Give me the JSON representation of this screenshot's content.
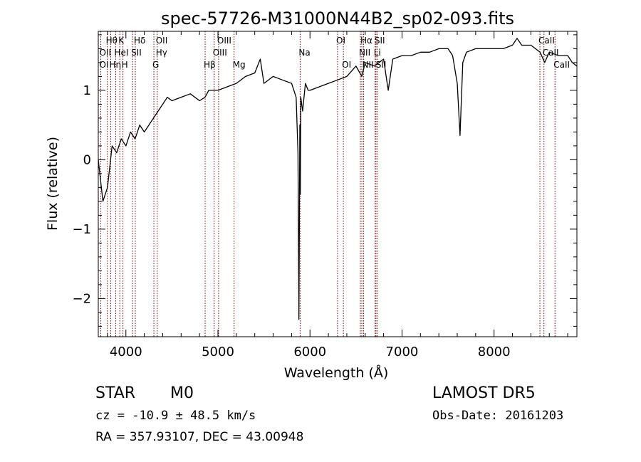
{
  "chart_data": {
    "type": "line",
    "title": "spec-57726-M31000N44B2_sp02-093.fits",
    "xlabel": "Wavelength (Å)",
    "ylabel": "Flux (relative)",
    "xlim": [
      3700,
      8900
    ],
    "ylim": [
      -2.55,
      1.85
    ],
    "xticks": [
      4000,
      5000,
      6000,
      7000,
      8000
    ],
    "yticks": [
      -2,
      -1,
      0,
      1
    ],
    "line_color": "#000000",
    "marker_color": "#8b0000",
    "series": [
      {
        "x": [
          3700,
          3750,
          3800,
          3850,
          3900,
          3950,
          4000,
          4050,
          4100,
          4150,
          4200,
          4250,
          4300,
          4350,
          4400,
          4450,
          4500,
          4600,
          4700,
          4800,
          4860,
          4900,
          5000,
          5100,
          5200,
          5300,
          5400,
          5460,
          5500,
          5600,
          5700,
          5800,
          5850,
          5870,
          5880,
          5890,
          5895,
          5900,
          5920,
          5950,
          5980,
          6000,
          6100,
          6200,
          6300,
          6400,
          6500,
          6563,
          6600,
          6700,
          6800,
          6850,
          6900,
          7000,
          7100,
          7200,
          7300,
          7400,
          7500,
          7550,
          7600,
          7630,
          7660,
          7700,
          7800,
          7900,
          8000,
          8100,
          8200,
          8250,
          8300,
          8400,
          8500,
          8550,
          8600,
          8700,
          8800,
          8850,
          8900
        ],
        "y": [
          0.0,
          -0.6,
          -0.4,
          0.2,
          0.1,
          0.3,
          0.2,
          0.4,
          0.3,
          0.5,
          0.4,
          0.5,
          0.6,
          0.7,
          0.8,
          0.9,
          0.85,
          0.9,
          0.95,
          0.85,
          0.9,
          1.0,
          1.0,
          1.05,
          1.1,
          1.2,
          1.25,
          1.45,
          1.1,
          1.2,
          1.15,
          1.1,
          0.9,
          0.1,
          -2.3,
          0.5,
          -0.5,
          0.9,
          0.7,
          1.1,
          1.0,
          1.0,
          1.05,
          1.1,
          1.15,
          1.2,
          1.35,
          1.2,
          1.4,
          1.35,
          1.45,
          1.0,
          1.45,
          1.5,
          1.5,
          1.55,
          1.55,
          1.6,
          1.6,
          1.5,
          1.1,
          0.35,
          1.4,
          1.55,
          1.6,
          1.6,
          1.6,
          1.6,
          1.65,
          1.75,
          1.65,
          1.65,
          1.55,
          1.4,
          1.55,
          1.5,
          1.5,
          1.4,
          1.35
        ]
      }
    ],
    "lines": [
      {
        "name": "Hθ",
        "wl": 3798,
        "row": 1
      },
      {
        "name": "K",
        "wl": 3934,
        "row": 1
      },
      {
        "name": "Hδ",
        "wl": 4102,
        "row": 1
      },
      {
        "name": "OII",
        "wl": 4340,
        "row": 1
      },
      {
        "name": "OIII",
        "wl": 5007,
        "row": 1
      },
      {
        "name": "Na",
        "wl": 5893,
        "row": 2
      },
      {
        "name": "OI",
        "wl": 6300,
        "row": 1
      },
      {
        "name": "Hα",
        "wl": 6563,
        "row": 1
      },
      {
        "name": "SII",
        "wl": 6717,
        "row": 1
      },
      {
        "name": "CaII",
        "wl": 8498,
        "row": 1
      },
      {
        "name": "OII",
        "wl": 3727,
        "row": 2
      },
      {
        "name": "HeI",
        "wl": 3889,
        "row": 2
      },
      {
        "name": "SII",
        "wl": 4072,
        "row": 2
      },
      {
        "name": "Hγ",
        "wl": 4340,
        "row": 2
      },
      {
        "name": "OIII",
        "wl": 4959,
        "row": 2
      },
      {
        "name": "NII",
        "wl": 6548,
        "row": 2
      },
      {
        "name": "Li",
        "wl": 6708,
        "row": 2
      },
      {
        "name": "CaII",
        "wl": 8542,
        "row": 2
      },
      {
        "name": "OI",
        "wl": 3727,
        "row": 3
      },
      {
        "name": "Hη",
        "wl": 3835,
        "row": 3
      },
      {
        "name": "H",
        "wl": 3968,
        "row": 3
      },
      {
        "name": "G",
        "wl": 4304,
        "row": 3
      },
      {
        "name": "Hβ",
        "wl": 4861,
        "row": 3
      },
      {
        "name": "Mg",
        "wl": 5175,
        "row": 3
      },
      {
        "name": "OI",
        "wl": 6363,
        "row": 3
      },
      {
        "name": "NII",
        "wl": 6583,
        "row": 3
      },
      {
        "name": "SII",
        "wl": 6731,
        "row": 3
      },
      {
        "name": "CaII",
        "wl": 8662,
        "row": 3
      }
    ],
    "markers": [
      3727,
      3798,
      3835,
      3889,
      3934,
      3968,
      4072,
      4102,
      4304,
      4340,
      4861,
      4959,
      5007,
      5175,
      5893,
      6300,
      6363,
      6548,
      6563,
      6583,
      6708,
      6717,
      6731,
      8498,
      8542,
      8662
    ]
  },
  "footer": {
    "object_class": "STAR",
    "subclass": "M0",
    "survey": "LAMOST DR5",
    "cz_label": "cz =",
    "cz_value": "-10.9",
    "cz_pm": "±",
    "cz_err": "48.5",
    "cz_unit": "km/s",
    "obs_date": "Obs-Date: 20161203",
    "radec": "RA = 357.93107, DEC =  43.00948"
  }
}
